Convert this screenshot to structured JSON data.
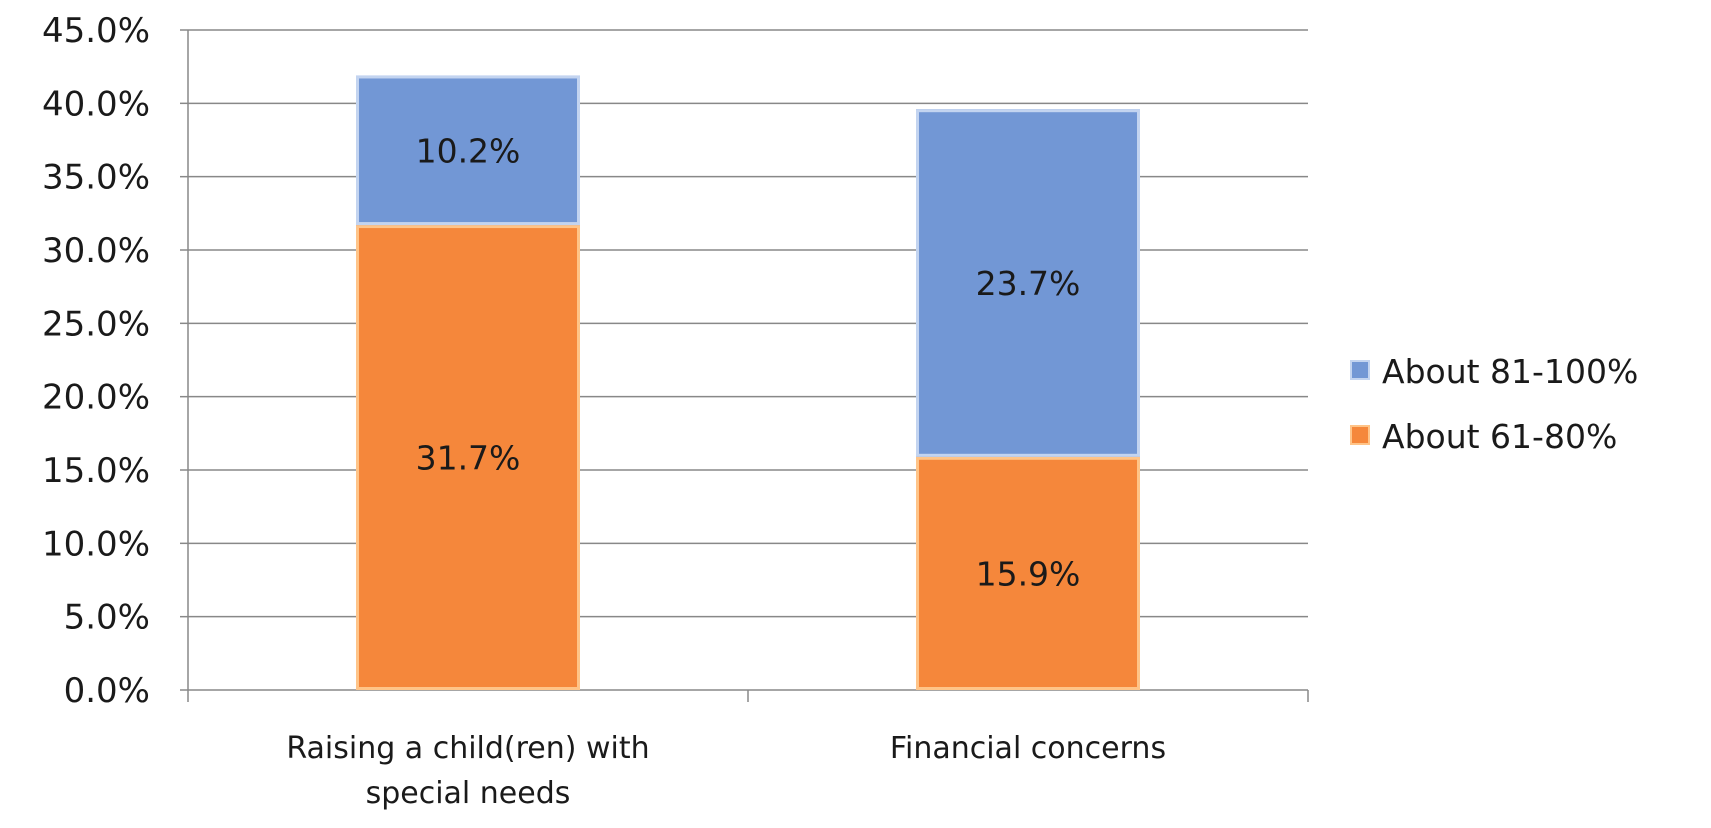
{
  "chart_data": {
    "type": "bar",
    "stacked": true,
    "categories": [
      "Raising a child(ren) with special needs",
      "Financial concerns"
    ],
    "category_lines": [
      [
        "Raising a child(ren) with",
        "special needs"
      ],
      [
        "Financial concerns"
      ]
    ],
    "series": [
      {
        "name": "About 61-80%",
        "values": [
          31.7,
          15.9
        ],
        "labels": [
          "31.7%",
          "15.9%"
        ],
        "color": "#f5873b",
        "edge": "#ffc488"
      },
      {
        "name": "About 81-100%",
        "values": [
          10.2,
          23.7
        ],
        "labels": [
          "10.2%",
          "23.7%"
        ],
        "color": "#7297d5",
        "edge": "#c3d4f0"
      }
    ],
    "legend_order": [
      1,
      0
    ],
    "legend_position": "right",
    "ylim": [
      0,
      45
    ],
    "yticks": [
      "0.0%",
      "5.0%",
      "10.0%",
      "15.0%",
      "20.0%",
      "25.0%",
      "30.0%",
      "35.0%",
      "40.0%",
      "45.0%"
    ],
    "grid": true,
    "grid_color": "#888888",
    "title": "",
    "xlabel": "",
    "ylabel": ""
  }
}
